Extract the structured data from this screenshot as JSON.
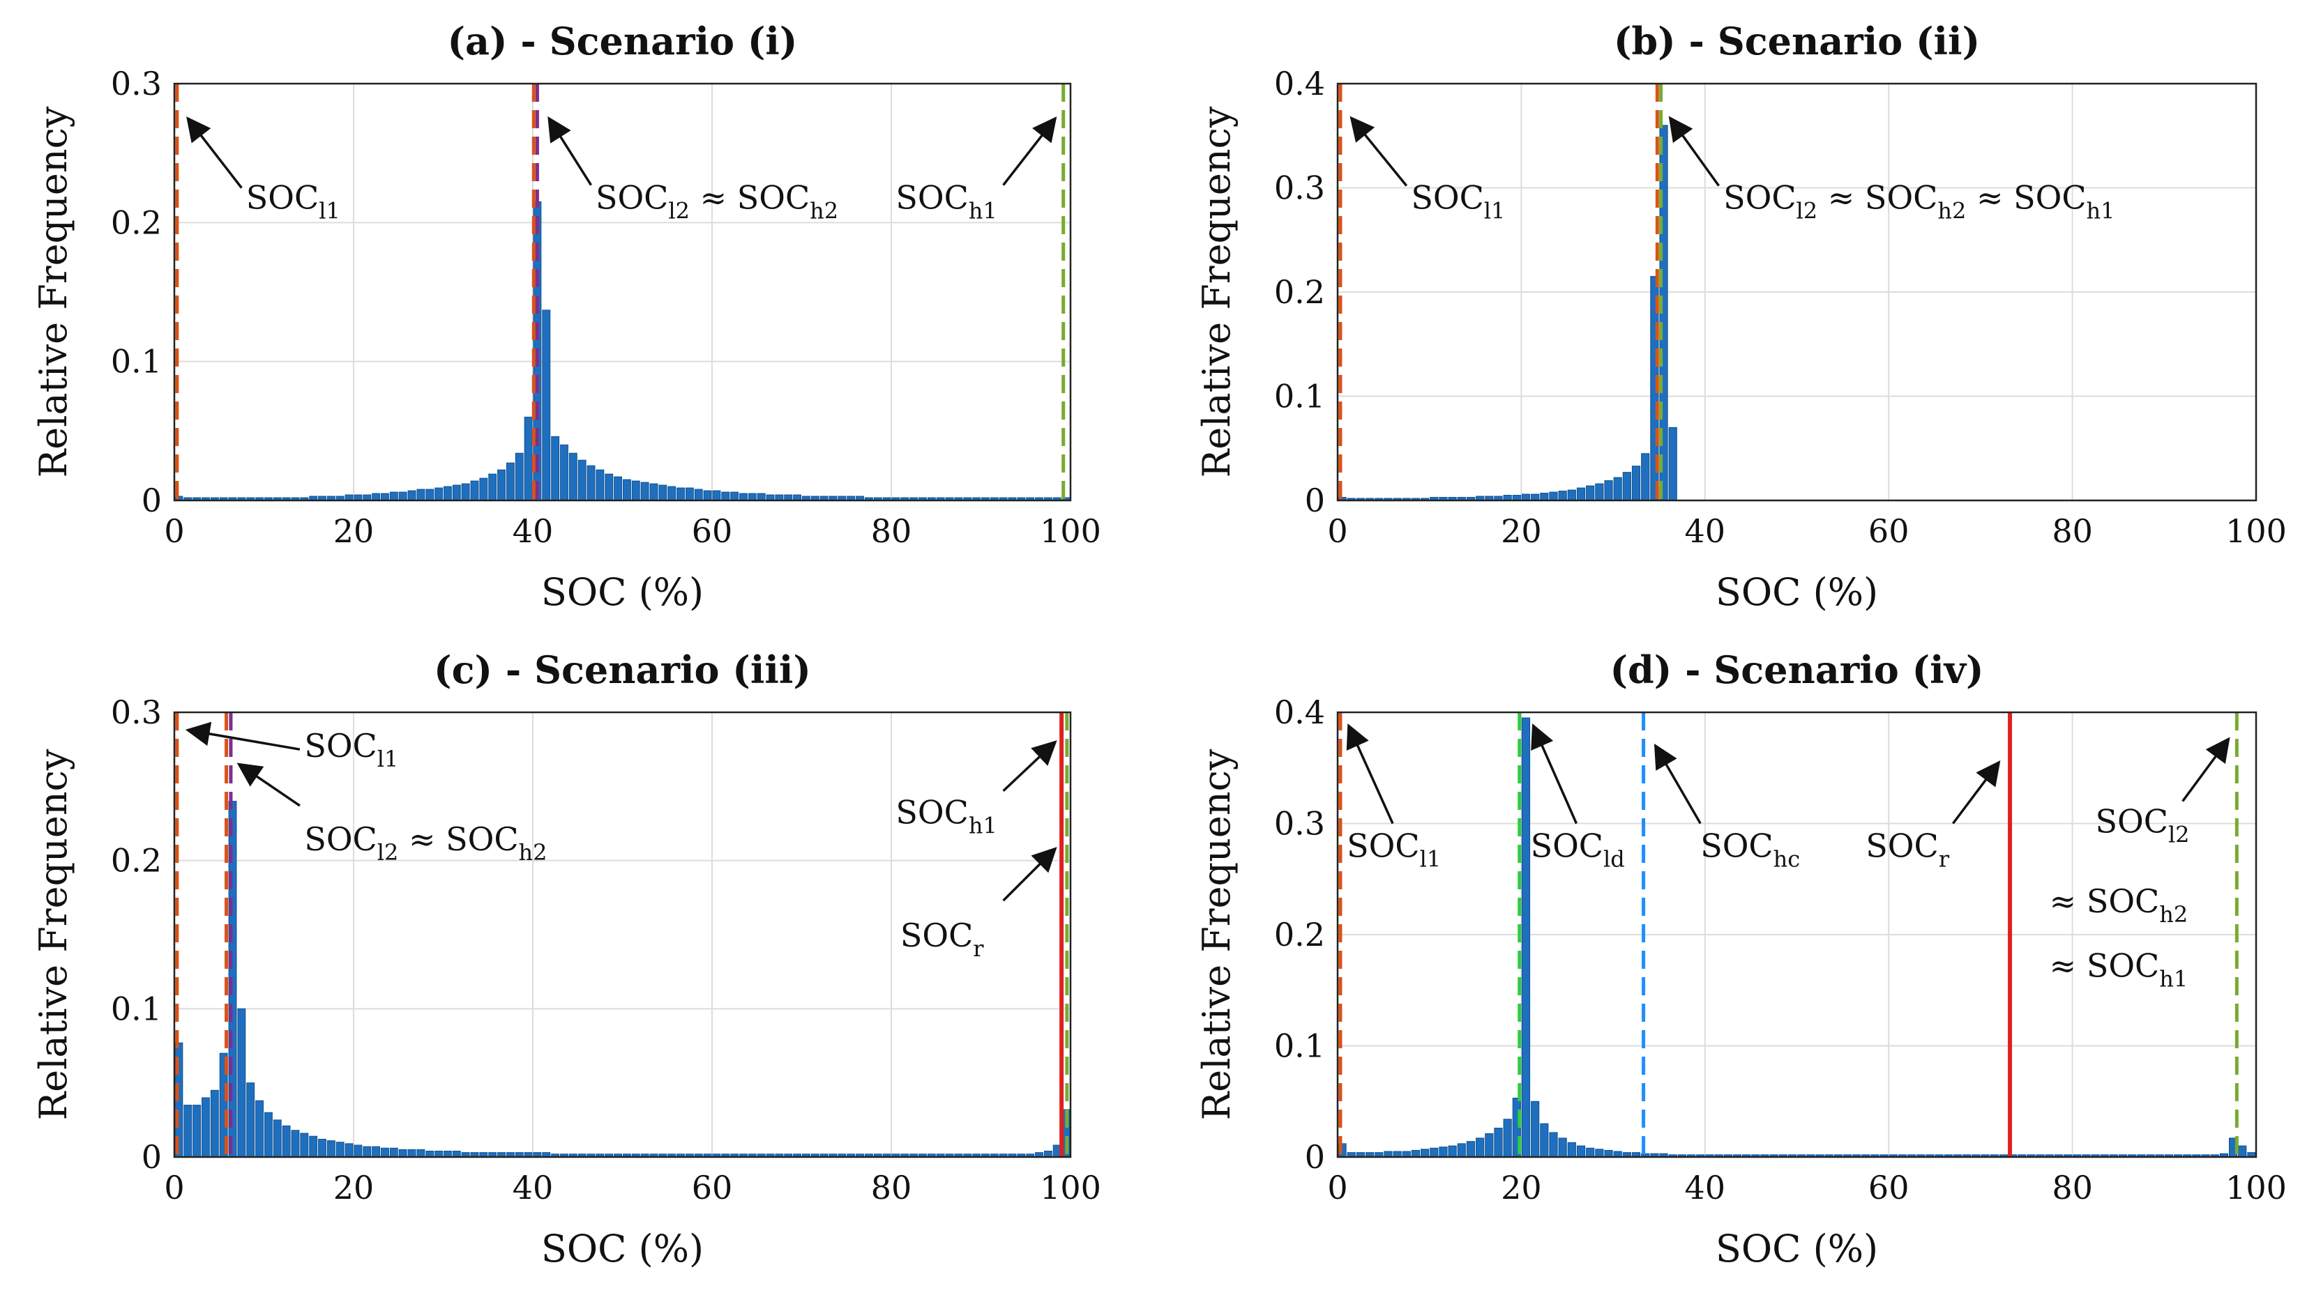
{
  "chart_data": [
    {
      "id": "a",
      "type": "bar",
      "title": "(a) - Scenario (i)",
      "xlabel": "SOC (%)",
      "ylabel": "Relative Frequency",
      "xlim": [
        0,
        100
      ],
      "ylim": [
        0,
        0.3
      ],
      "xticks": [
        "0",
        "20",
        "40",
        "60",
        "80",
        "100"
      ],
      "yticks": [
        "0",
        "0.1",
        "0.2",
        "0.3"
      ],
      "grid": true,
      "bins": {
        "start": 0,
        "width": 1
      },
      "values": [
        0.003,
        0.002,
        0.002,
        0.002,
        0.002,
        0.002,
        0.002,
        0.002,
        0.002,
        0.002,
        0.002,
        0.002,
        0.002,
        0.002,
        0.002,
        0.003,
        0.003,
        0.003,
        0.003,
        0.004,
        0.004,
        0.004,
        0.005,
        0.005,
        0.006,
        0.006,
        0.007,
        0.008,
        0.008,
        0.009,
        0.01,
        0.011,
        0.012,
        0.014,
        0.016,
        0.019,
        0.022,
        0.027,
        0.034,
        0.06,
        0.215,
        0.137,
        0.046,
        0.04,
        0.034,
        0.029,
        0.025,
        0.022,
        0.019,
        0.017,
        0.015,
        0.014,
        0.013,
        0.012,
        0.011,
        0.01,
        0.009,
        0.009,
        0.008,
        0.007,
        0.007,
        0.006,
        0.006,
        0.005,
        0.005,
        0.005,
        0.004,
        0.004,
        0.004,
        0.004,
        0.003,
        0.003,
        0.003,
        0.003,
        0.003,
        0.003,
        0.003,
        0.002,
        0.002,
        0.002,
        0.002,
        0.002,
        0.002,
        0.002,
        0.002,
        0.002,
        0.002,
        0.002,
        0.002,
        0.002,
        0.002,
        0.002,
        0.002,
        0.002,
        0.002,
        0.002,
        0.002,
        0.002,
        0.002,
        0.002
      ],
      "vlines": [
        {
          "x": 0.3,
          "color": "#d95319",
          "style": "dash"
        },
        {
          "x": 40.1,
          "color": "#d95319",
          "style": "dash"
        },
        {
          "x": 40.5,
          "color": "#7e2f8e",
          "style": "dash"
        },
        {
          "x": 99.2,
          "color": "#77ac30",
          "style": "dash"
        }
      ],
      "annotations": [
        {
          "base": "SOC",
          "sub": "l1",
          "tx": 8,
          "ty": 0.21,
          "ax": 1.5,
          "ay": 0.275,
          "tipx": 1.5,
          "tipy": 0.275,
          "fromx": 7.5,
          "fromy": 0.225
        },
        {
          "base": "SOC",
          "sub": "l2",
          "rest": "≈ SOC",
          "sub2": "h2",
          "tx": 47,
          "ty": 0.21,
          "tipx": 41.8,
          "tipy": 0.275,
          "fromx": 46.5,
          "fromy": 0.227
        },
        {
          "base": "SOC",
          "sub": "h1",
          "tx": 80.5,
          "ty": 0.21,
          "tipx": 98.3,
          "tipy": 0.275,
          "fromx": 92.5,
          "fromy": 0.227
        }
      ]
    },
    {
      "id": "b",
      "type": "bar",
      "title": "(b) - Scenario (ii)",
      "xlabel": "SOC (%)",
      "ylabel": "Relative Frequency",
      "xlim": [
        0,
        100
      ],
      "ylim": [
        0,
        0.4
      ],
      "xticks": [
        "0",
        "20",
        "40",
        "60",
        "80",
        "100"
      ],
      "yticks": [
        "0",
        "0.1",
        "0.2",
        "0.3",
        "0.4"
      ],
      "grid": true,
      "bins": {
        "start": 0,
        "width": 1
      },
      "values": [
        0.003,
        0.002,
        0.002,
        0.002,
        0.002,
        0.002,
        0.002,
        0.002,
        0.002,
        0.002,
        0.003,
        0.003,
        0.003,
        0.003,
        0.003,
        0.004,
        0.004,
        0.004,
        0.005,
        0.005,
        0.006,
        0.006,
        0.007,
        0.008,
        0.009,
        0.01,
        0.012,
        0.014,
        0.016,
        0.019,
        0.022,
        0.027,
        0.033,
        0.045,
        0.215,
        0.36,
        0.07,
        0,
        0,
        0,
        0,
        0,
        0,
        0,
        0,
        0,
        0,
        0,
        0,
        0,
        0,
        0,
        0,
        0,
        0,
        0,
        0,
        0,
        0,
        0,
        0,
        0,
        0,
        0,
        0,
        0,
        0,
        0,
        0,
        0,
        0,
        0,
        0,
        0,
        0,
        0,
        0,
        0,
        0,
        0,
        0,
        0,
        0,
        0,
        0,
        0,
        0,
        0,
        0,
        0,
        0,
        0,
        0,
        0,
        0,
        0,
        0,
        0,
        0,
        0
      ],
      "vlines": [
        {
          "x": 0.3,
          "color": "#d95319",
          "style": "dash"
        },
        {
          "x": 34.8,
          "color": "#d95319",
          "style": "dash"
        },
        {
          "x": 35.2,
          "color": "#77ac30",
          "style": "dash"
        }
      ],
      "annotations": [
        {
          "base": "SOC",
          "sub": "l1",
          "tx": 8,
          "ty": 0.28,
          "tipx": 1.5,
          "tipy": 0.367,
          "fromx": 7.5,
          "fromy": 0.302
        },
        {
          "base": "SOC",
          "sub": "l2",
          "rest": "≈ SOC",
          "sub2": "h2",
          "rest2": "≈ SOC",
          "sub3": "h1",
          "tx": 42,
          "ty": 0.28,
          "tipx": 36.2,
          "tipy": 0.367,
          "fromx": 41.5,
          "fromy": 0.302
        }
      ]
    },
    {
      "id": "c",
      "type": "bar",
      "title": "(c) - Scenario (iii)",
      "xlabel": "SOC (%)",
      "ylabel": "Relative Frequency",
      "xlim": [
        0,
        100
      ],
      "ylim": [
        0,
        0.3
      ],
      "xticks": [
        "0",
        "20",
        "40",
        "60",
        "80",
        "100"
      ],
      "yticks": [
        "0",
        "0.1",
        "0.2",
        "0.3"
      ],
      "grid": true,
      "bins": {
        "start": 0,
        "width": 1
      },
      "values": [
        0.077,
        0.035,
        0.035,
        0.04,
        0.045,
        0.07,
        0.24,
        0.1,
        0.05,
        0.038,
        0.03,
        0.025,
        0.021,
        0.018,
        0.016,
        0.014,
        0.012,
        0.011,
        0.01,
        0.009,
        0.008,
        0.007,
        0.007,
        0.006,
        0.006,
        0.005,
        0.005,
        0.005,
        0.004,
        0.004,
        0.004,
        0.004,
        0.003,
        0.003,
        0.003,
        0.003,
        0.003,
        0.003,
        0.003,
        0.003,
        0.003,
        0.003,
        0.002,
        0.002,
        0.002,
        0.002,
        0.002,
        0.002,
        0.002,
        0.002,
        0.002,
        0.002,
        0.002,
        0.002,
        0.002,
        0.002,
        0.002,
        0.002,
        0.002,
        0.002,
        0.002,
        0.002,
        0.002,
        0.002,
        0.002,
        0.002,
        0.002,
        0.002,
        0.002,
        0.002,
        0.002,
        0.002,
        0.002,
        0.002,
        0.002,
        0.002,
        0.002,
        0.002,
        0.002,
        0.002,
        0.002,
        0.002,
        0.002,
        0.002,
        0.002,
        0.002,
        0.002,
        0.002,
        0.002,
        0.002,
        0.002,
        0.002,
        0.002,
        0.002,
        0.002,
        0.002,
        0.003,
        0.004,
        0.008,
        0.032
      ],
      "vlines": [
        {
          "x": 0.3,
          "color": "#d95319",
          "style": "dash"
        },
        {
          "x": 5.8,
          "color": "#d95319",
          "style": "dash"
        },
        {
          "x": 6.3,
          "color": "#7e2f8e",
          "style": "dash"
        },
        {
          "x": 99.0,
          "color": "#e02020",
          "style": "solid"
        },
        {
          "x": 99.6,
          "color": "#77ac30",
          "style": "dash"
        }
      ],
      "annotations": [
        {
          "base": "SOC",
          "sub": "l1",
          "tx": 14.5,
          "ty": 0.27,
          "tipx": 1.5,
          "tipy": 0.288,
          "fromx": 14,
          "fromy": 0.275
        },
        {
          "base": "SOC",
          "sub": "l2",
          "rest": "≈ SOC",
          "sub2": "h2",
          "tx": 14.5,
          "ty": 0.207,
          "tipx": 7.2,
          "tipy": 0.265,
          "fromx": 14,
          "fromy": 0.237
        },
        {
          "base": "SOC",
          "sub": "h1",
          "tx": 80.5,
          "ty": 0.225,
          "tipx": 98.3,
          "tipy": 0.28,
          "fromx": 92.5,
          "fromy": 0.247
        },
        {
          "base": "SOC",
          "sub": "r",
          "tx": 81,
          "ty": 0.142,
          "tipx": 98.3,
          "tipy": 0.208,
          "fromx": 92.5,
          "fromy": 0.173
        }
      ]
    },
    {
      "id": "d",
      "type": "bar",
      "title": "(d) - Scenario (iv)",
      "xlabel": "SOC (%)",
      "ylabel": "Relative Frequency",
      "xlim": [
        0,
        100
      ],
      "ylim": [
        0,
        0.4
      ],
      "xticks": [
        "0",
        "20",
        "40",
        "60",
        "80",
        "100"
      ],
      "yticks": [
        "0",
        "0.1",
        "0.2",
        "0.3",
        "0.4"
      ],
      "grid": true,
      "bins": {
        "start": 0,
        "width": 1
      },
      "values": [
        0.012,
        0.004,
        0.004,
        0.004,
        0.004,
        0.005,
        0.005,
        0.005,
        0.006,
        0.007,
        0.008,
        0.009,
        0.01,
        0.012,
        0.014,
        0.017,
        0.021,
        0.026,
        0.034,
        0.053,
        0.395,
        0.05,
        0.03,
        0.022,
        0.017,
        0.013,
        0.01,
        0.008,
        0.007,
        0.006,
        0.005,
        0.004,
        0.004,
        0.003,
        0.003,
        0.003,
        0.002,
        0.002,
        0.002,
        0.002,
        0.002,
        0.002,
        0.002,
        0.002,
        0.002,
        0.002,
        0.002,
        0.002,
        0.002,
        0.002,
        0.002,
        0.002,
        0.002,
        0.002,
        0.002,
        0.002,
        0.002,
        0.002,
        0.002,
        0.002,
        0.002,
        0.002,
        0.002,
        0.002,
        0.002,
        0.002,
        0.002,
        0.002,
        0.002,
        0.002,
        0.002,
        0.002,
        0.002,
        0.002,
        0.002,
        0.002,
        0.002,
        0.002,
        0.002,
        0.002,
        0.002,
        0.002,
        0.002,
        0.002,
        0.002,
        0.002,
        0.002,
        0.002,
        0.002,
        0.002,
        0.002,
        0.002,
        0.002,
        0.002,
        0.002,
        0.002,
        0.003,
        0.017,
        0.01,
        0.004
      ],
      "vlines": [
        {
          "x": 0.3,
          "color": "#d95319",
          "style": "dash"
        },
        {
          "x": 19.8,
          "color": "#2ecc40",
          "style": "dash"
        },
        {
          "x": 33.3,
          "color": "#1e90ff",
          "style": "dash"
        },
        {
          "x": 73.2,
          "color": "#e02020",
          "style": "solid"
        },
        {
          "x": 97.9,
          "color": "#77ac30",
          "style": "dash"
        }
      ],
      "annotations": [
        {
          "base": "SOC",
          "sub": "l1",
          "tx": 1,
          "ty": 0.27,
          "tipx": 1.2,
          "tipy": 0.388,
          "fromx": 6,
          "fromy": 0.3
        },
        {
          "base": "SOC",
          "sub": "ld",
          "tx": 21,
          "ty": 0.27,
          "tipx": 21.3,
          "tipy": 0.388,
          "fromx": 26,
          "fromy": 0.3
        },
        {
          "base": "SOC",
          "sub": "hc",
          "tx": 39.5,
          "ty": 0.27,
          "tipx": 34.6,
          "tipy": 0.37,
          "fromx": 39.5,
          "fromy": 0.3
        },
        {
          "base": "SOC",
          "sub": "r",
          "tx": 57.5,
          "ty": 0.27,
          "tipx": 72,
          "tipy": 0.355,
          "fromx": 67,
          "fromy": 0.3
        },
        {
          "base": "SOC",
          "sub": "l2",
          "tx": 82.5,
          "ty": 0.292,
          "tipx": 97,
          "tipy": 0.376,
          "fromx": 92,
          "fromy": 0.32
        },
        {
          "base": "≈ SOC",
          "sub": "h2",
          "tx": 77.5,
          "ty": 0.22
        },
        {
          "base": "≈ SOC",
          "sub": "h1",
          "tx": 77.5,
          "ty": 0.162
        }
      ]
    }
  ]
}
